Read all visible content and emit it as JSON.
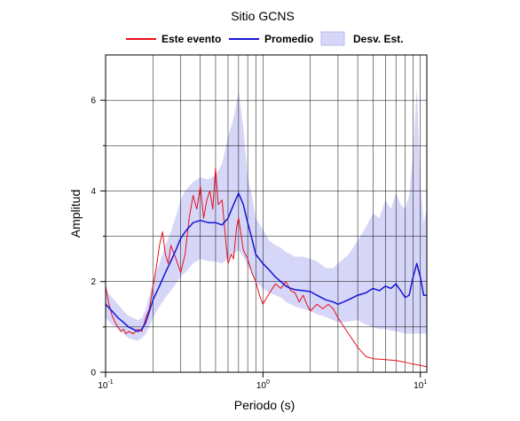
{
  "chart_data": {
    "type": "line",
    "title": "Sitio GCNS",
    "xlabel": "Periodo (s)",
    "ylabel": "Amplitud",
    "xscale": "log",
    "xlim": [
      0.1,
      11
    ],
    "ylim": [
      0,
      7
    ],
    "grid": true,
    "legend_position": "top",
    "x_ticks": [
      {
        "value": 0.1,
        "base": "10",
        "exp": "-1"
      },
      {
        "value": 1,
        "base": "10",
        "exp": "0"
      },
      {
        "value": 10,
        "base": "10",
        "exp": "1"
      }
    ],
    "y_ticks": [
      0,
      2,
      4,
      6
    ],
    "series": [
      {
        "name": "Este evento",
        "color": "#e8101a",
        "x": [
          0.1,
          0.105,
          0.11,
          0.115,
          0.12,
          0.125,
          0.13,
          0.135,
          0.14,
          0.15,
          0.16,
          0.17,
          0.18,
          0.19,
          0.2,
          0.21,
          0.22,
          0.23,
          0.24,
          0.25,
          0.26,
          0.28,
          0.3,
          0.32,
          0.34,
          0.36,
          0.38,
          0.4,
          0.42,
          0.44,
          0.46,
          0.48,
          0.5,
          0.52,
          0.55,
          0.58,
          0.6,
          0.63,
          0.65,
          0.68,
          0.7,
          0.75,
          0.8,
          0.85,
          0.9,
          0.95,
          1.0,
          1.1,
          1.2,
          1.3,
          1.4,
          1.5,
          1.6,
          1.7,
          1.8,
          1.9,
          2.0,
          2.2,
          2.4,
          2.6,
          2.8,
          3.0,
          3.5,
          4.0,
          4.5,
          5.0,
          6.0,
          7.0,
          8.0,
          9.0,
          10.0,
          11.0
        ],
        "y": [
          1.9,
          1.5,
          1.25,
          1.1,
          1.0,
          0.9,
          0.95,
          0.85,
          0.9,
          0.85,
          0.95,
          0.9,
          1.2,
          1.4,
          1.9,
          2.3,
          2.8,
          3.1,
          2.6,
          2.4,
          2.8,
          2.5,
          2.2,
          2.6,
          3.4,
          3.9,
          3.6,
          4.1,
          3.4,
          3.8,
          4.0,
          3.6,
          4.5,
          3.7,
          3.8,
          2.9,
          2.4,
          2.6,
          2.5,
          3.2,
          3.4,
          2.7,
          2.5,
          2.2,
          2.0,
          1.7,
          1.5,
          1.75,
          1.95,
          1.85,
          2.0,
          1.8,
          1.75,
          1.55,
          1.7,
          1.5,
          1.35,
          1.5,
          1.4,
          1.5,
          1.4,
          1.2,
          0.85,
          0.55,
          0.35,
          0.3,
          0.28,
          0.26,
          0.22,
          0.18,
          0.15,
          0.12
        ]
      },
      {
        "name": "Promedio",
        "color": "#1414d6",
        "x": [
          0.1,
          0.11,
          0.12,
          0.13,
          0.14,
          0.15,
          0.16,
          0.17,
          0.18,
          0.19,
          0.2,
          0.22,
          0.24,
          0.26,
          0.28,
          0.3,
          0.32,
          0.34,
          0.36,
          0.4,
          0.45,
          0.5,
          0.55,
          0.6,
          0.65,
          0.7,
          0.75,
          0.8,
          0.85,
          0.9,
          1.0,
          1.1,
          1.2,
          1.3,
          1.4,
          1.5,
          1.6,
          1.8,
          2.0,
          2.2,
          2.5,
          2.8,
          3.0,
          3.5,
          4.0,
          4.5,
          5.0,
          5.5,
          6.0,
          6.5,
          7.0,
          7.5,
          8.0,
          8.5,
          9.0,
          9.5,
          10.0,
          10.5,
          11.0
        ],
        "y": [
          1.5,
          1.35,
          1.2,
          1.1,
          1.0,
          0.95,
          0.9,
          0.95,
          1.1,
          1.35,
          1.6,
          1.9,
          2.2,
          2.45,
          2.7,
          2.95,
          3.1,
          3.2,
          3.3,
          3.35,
          3.3,
          3.3,
          3.25,
          3.4,
          3.7,
          3.95,
          3.7,
          3.3,
          2.95,
          2.6,
          2.4,
          2.25,
          2.1,
          2.0,
          1.9,
          1.85,
          1.82,
          1.8,
          1.78,
          1.7,
          1.6,
          1.55,
          1.5,
          1.6,
          1.7,
          1.75,
          1.85,
          1.8,
          1.9,
          1.85,
          1.95,
          1.8,
          1.65,
          1.7,
          2.1,
          2.4,
          2.1,
          1.7,
          1.7
        ]
      },
      {
        "name": "Desv. Est.",
        "color": "#d6d6f8",
        "x": [
          0.1,
          0.11,
          0.12,
          0.13,
          0.14,
          0.15,
          0.16,
          0.17,
          0.18,
          0.19,
          0.2,
          0.22,
          0.24,
          0.26,
          0.28,
          0.3,
          0.32,
          0.34,
          0.36,
          0.4,
          0.45,
          0.5,
          0.55,
          0.6,
          0.65,
          0.7,
          0.75,
          0.8,
          0.85,
          0.9,
          1.0,
          1.1,
          1.2,
          1.3,
          1.4,
          1.5,
          1.6,
          1.8,
          2.0,
          2.2,
          2.5,
          2.8,
          3.0,
          3.5,
          4.0,
          4.5,
          5.0,
          5.5,
          6.0,
          6.5,
          7.0,
          7.5,
          8.0,
          8.5,
          9.0,
          9.5,
          10.0,
          10.5,
          11.0
        ],
        "lower": [
          1.2,
          1.05,
          0.95,
          0.85,
          0.75,
          0.72,
          0.7,
          0.75,
          0.85,
          1.0,
          1.2,
          1.45,
          1.65,
          1.8,
          1.95,
          2.1,
          2.2,
          2.3,
          2.4,
          2.5,
          2.45,
          2.45,
          2.4,
          2.5,
          2.6,
          2.7,
          2.55,
          2.35,
          2.2,
          2.0,
          1.85,
          1.75,
          1.7,
          1.65,
          1.55,
          1.5,
          1.45,
          1.4,
          1.35,
          1.28,
          1.22,
          1.15,
          1.1,
          1.12,
          1.15,
          1.05,
          1.0,
          0.95,
          0.95,
          0.92,
          0.9,
          0.88,
          0.85,
          0.85,
          0.85,
          0.85,
          0.85,
          0.85,
          0.85
        ],
        "upper": [
          1.8,
          1.65,
          1.5,
          1.35,
          1.25,
          1.2,
          1.15,
          1.2,
          1.4,
          1.7,
          2.0,
          2.4,
          2.8,
          3.1,
          3.45,
          3.8,
          4.0,
          4.1,
          4.2,
          4.3,
          4.25,
          4.35,
          4.6,
          5.2,
          5.6,
          6.2,
          5.4,
          4.3,
          3.9,
          3.4,
          3.15,
          2.9,
          2.8,
          2.75,
          2.65,
          2.6,
          2.55,
          2.55,
          2.5,
          2.45,
          2.3,
          2.3,
          2.4,
          2.6,
          2.9,
          3.2,
          3.5,
          3.4,
          3.8,
          3.6,
          3.95,
          3.7,
          3.6,
          3.9,
          4.8,
          6.3,
          4.2,
          3.3,
          3.6
        ]
      }
    ]
  }
}
